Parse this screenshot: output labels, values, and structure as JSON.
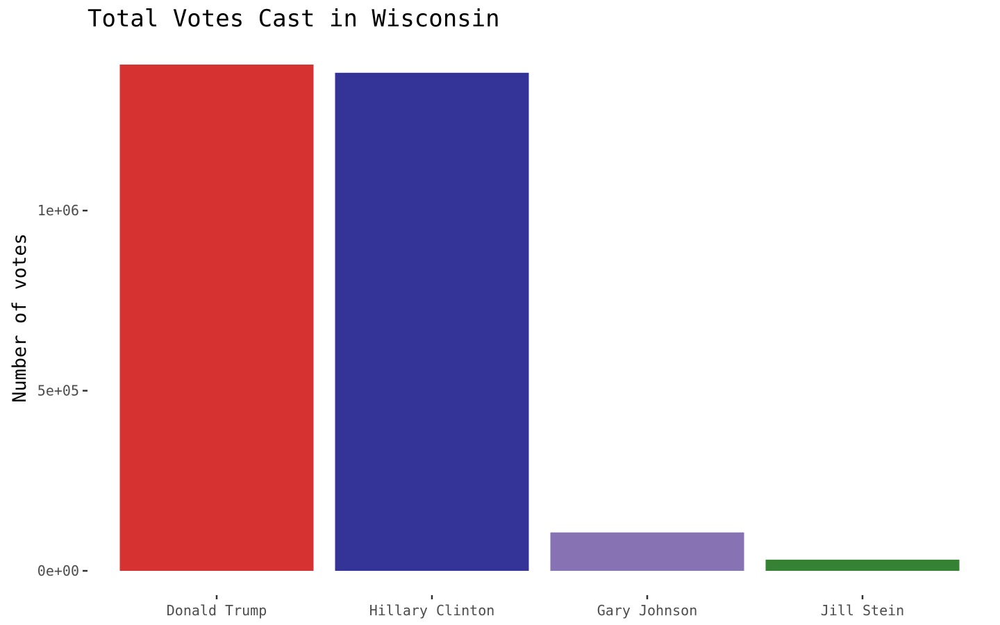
{
  "chart_data": {
    "type": "bar",
    "title": "Total Votes Cast in Wisconsin",
    "xlabel": "",
    "ylabel": "Number of votes",
    "categories": [
      "Donald Trump",
      "Hillary Clinton",
      "Gary Johnson",
      "Jill Stein"
    ],
    "values": [
      1405284,
      1382536,
      106674,
      31072
    ],
    "colors": [
      "#d73232",
      "#343498",
      "#8773b3",
      "#358234"
    ],
    "ylim": [
      0,
      1405284
    ],
    "yticks": [
      0,
      500000,
      1000000
    ],
    "ytick_labels": [
      "0e+00",
      "5e+05",
      "1e+06"
    ],
    "grid": false,
    "legend": "none"
  }
}
